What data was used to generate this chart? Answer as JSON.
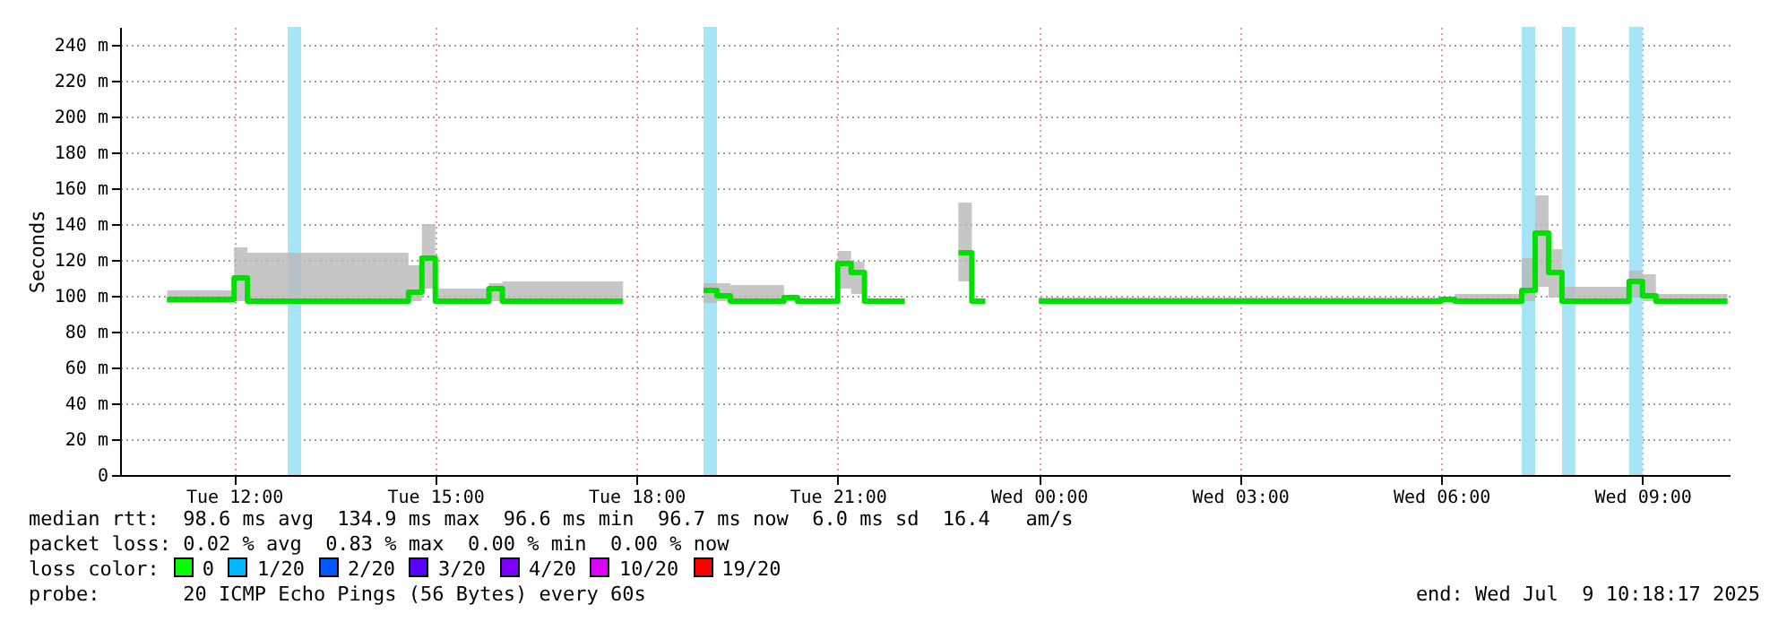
{
  "chart_data": {
    "type": "step",
    "ylabel": "Seconds",
    "x": [
      "2025-07-08T11:00",
      "2025-07-08T12:00",
      "2025-07-08T12:12",
      "2025-07-08T14:36",
      "2025-07-08T14:48",
      "2025-07-08T15:00",
      "2025-07-08T15:48",
      "2025-07-08T16:00",
      "2025-07-08T17:48",
      "2025-07-08T17:49",
      "2025-07-08T19:00",
      "2025-07-08T19:12",
      "2025-07-08T19:24",
      "2025-07-08T20:12",
      "2025-07-08T20:24",
      "2025-07-08T21:00",
      "2025-07-08T21:12",
      "2025-07-08T21:24",
      "2025-07-08T22:00",
      "2025-07-08T22:01",
      "2025-07-08T22:48",
      "2025-07-08T23:00",
      "2025-07-08T23:12",
      "2025-07-08T23:13",
      "2025-07-09T00:00",
      "2025-07-09T06:00",
      "2025-07-09T06:12",
      "2025-07-09T07:12",
      "2025-07-09T07:24",
      "2025-07-09T07:36",
      "2025-07-09T07:48",
      "2025-07-09T08:48",
      "2025-07-09T09:00",
      "2025-07-09T09:12",
      "2025-07-09T10:16"
    ],
    "series": [
      {
        "color": "#00e000",
        "values": [
          98,
          110,
          97,
          102,
          121,
          97,
          104,
          97,
          97,
          null,
          103,
          100,
          97,
          99,
          97,
          118,
          113,
          97,
          97,
          null,
          124,
          97,
          97,
          null,
          97,
          98,
          97,
          103,
          135,
          113,
          97,
          108,
          100,
          97,
          97
        ],
        "lower": [
          96,
          97,
          96,
          97,
          104,
          96,
          97,
          96,
          96,
          null,
          96,
          97,
          96,
          97,
          96,
          104,
          101,
          96,
          96,
          null,
          108,
          96,
          96,
          null,
          96,
          97,
          96,
          97,
          105,
          99,
          96,
          99,
          97,
          96,
          96
        ],
        "upper": [
          103,
          127,
          124,
          117,
          140,
          104,
          107,
          108,
          108,
          null,
          107,
          107,
          106,
          100,
          98,
          125,
          119,
          98,
          98,
          null,
          152,
          98,
          98,
          null,
          99,
          99,
          101,
          121,
          156,
          126,
          105,
          114,
          112,
          101,
          99
        ]
      }
    ],
    "xlim": [
      "2025-07-08T10:18",
      "2025-07-09T10:18"
    ],
    "xticks": [
      {
        "value": "2025-07-08T12:00",
        "label": "Tue 12:00"
      },
      {
        "value": "2025-07-08T15:00",
        "label": "Tue 15:00"
      },
      {
        "value": "2025-07-08T18:00",
        "label": "Tue 18:00"
      },
      {
        "value": "2025-07-08T21:00",
        "label": "Tue 21:00"
      },
      {
        "value": "2025-07-09T00:00",
        "label": "Wed 00:00"
      },
      {
        "value": "2025-07-09T03:00",
        "label": "Wed 03:00"
      },
      {
        "value": "2025-07-09T06:00",
        "label": "Wed 06:00"
      },
      {
        "value": "2025-07-09T09:00",
        "label": "Wed 09:00"
      }
    ],
    "ylim": [
      0,
      250
    ],
    "yticks": [
      0,
      {
        "value": 20,
        "label": "20 m"
      },
      {
        "value": 40,
        "label": "40 m"
      },
      {
        "value": 60,
        "label": "60 m"
      },
      {
        "value": 80,
        "label": "80 m"
      },
      {
        "value": 100,
        "label": "100 m"
      },
      {
        "value": 120,
        "label": "120 m"
      },
      {
        "value": 140,
        "label": "140 m"
      },
      {
        "value": 160,
        "label": "160 m"
      },
      {
        "value": 180,
        "label": "180 m"
      },
      {
        "value": 200,
        "label": "200 m"
      },
      {
        "value": 220,
        "label": "220 m"
      },
      {
        "value": 240,
        "label": "240 m"
      }
    ],
    "bands": [
      {
        "axis": "x",
        "from": "2025-07-08T12:48",
        "to": "2025-07-08T13:00",
        "color": "#a8e4f8"
      },
      {
        "axis": "x",
        "from": "2025-07-08T19:00",
        "to": "2025-07-08T19:12",
        "color": "#a8e4f8"
      },
      {
        "axis": "x",
        "from": "2025-07-09T07:12",
        "to": "2025-07-09T07:24",
        "color": "#a8e4f8"
      },
      {
        "axis": "x",
        "from": "2025-07-09T07:48",
        "to": "2025-07-09T08:00",
        "color": "#a8e4f8"
      },
      {
        "axis": "x",
        "from": "2025-07-09T08:48",
        "to": "2025-07-09T09:00",
        "color": "#a8e4f8"
      }
    ],
    "grid": true,
    "line_style": "solid",
    "annotations": [
      "median rtt:  98.6 ms avg  134.9 ms max  96.6 ms min  96.7 ms now  6.0 ms sd  16.4   am/s",
      "packet loss: 0.02 % avg  0.83 % max  0.00 % min  0.00 % now",
      "loss color:",
      "0",
      "1/20",
      "2/20",
      "3/20",
      "4/20",
      "10/20",
      "19/20",
      "probe:       20 ICMP Echo Pings (56 Bytes) every 60s",
      "end: Wed Jul  9 10:18:17 2025"
    ]
  }
}
